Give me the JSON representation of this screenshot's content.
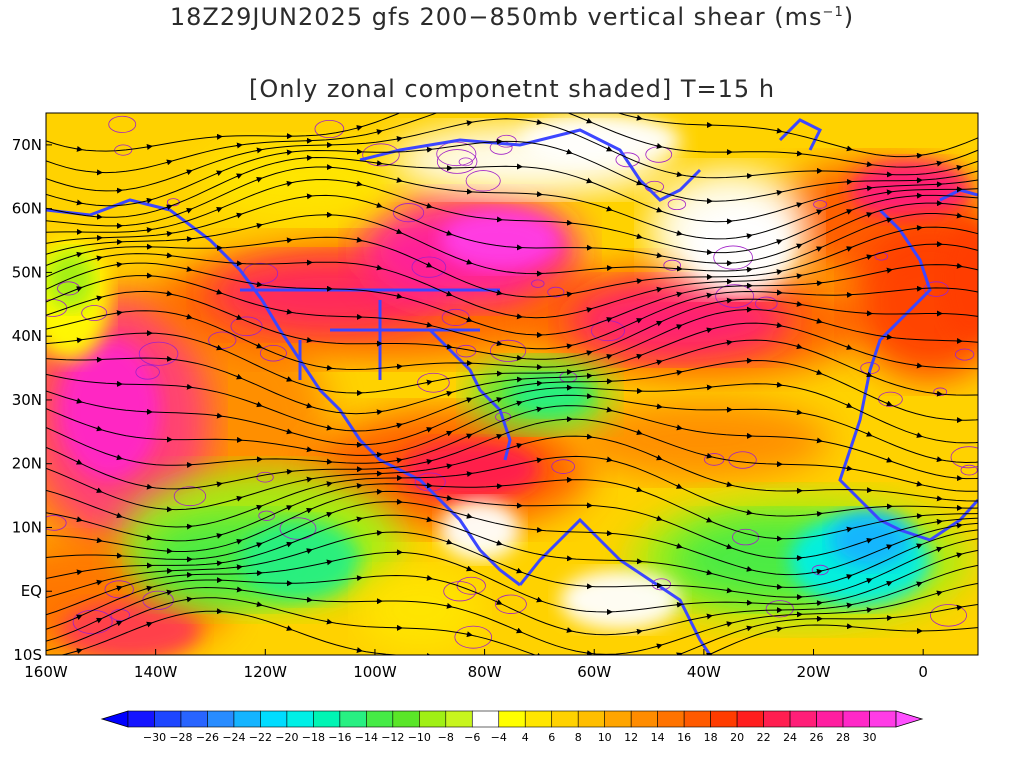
{
  "title": {
    "line1_main": "18Z29JUN2025 gfs 200−850mb vertical shear (ms",
    "line1_sup": "−1",
    "line1_end": ")",
    "line2": "[Only zonal componetnt shaded] T=15 h"
  },
  "map": {
    "lon_range": [
      -160,
      10
    ],
    "lat_range": [
      -10,
      75
    ],
    "projection": "equirectangular"
  },
  "axes": {
    "lat_labels": [
      {
        "text": "70N",
        "lat": 70
      },
      {
        "text": "60N",
        "lat": 60
      },
      {
        "text": "50N",
        "lat": 50
      },
      {
        "text": "40N",
        "lat": 40
      },
      {
        "text": "30N",
        "lat": 30
      },
      {
        "text": "20N",
        "lat": 20
      },
      {
        "text": "10N",
        "lat": 10
      },
      {
        "text": "EQ",
        "lat": 0
      },
      {
        "text": "10S",
        "lat": -10
      }
    ],
    "lon_labels": [
      {
        "text": "160W",
        "lon": -160
      },
      {
        "text": "140W",
        "lon": -140
      },
      {
        "text": "120W",
        "lon": -120
      },
      {
        "text": "100W",
        "lon": -100
      },
      {
        "text": "80W",
        "lon": -80
      },
      {
        "text": "60W",
        "lon": -60
      },
      {
        "text": "40W",
        "lon": -40
      },
      {
        "text": "20W",
        "lon": -20
      },
      {
        "text": "0",
        "lon": 0
      }
    ]
  },
  "colorbar": {
    "labels": [
      "−30",
      "−28",
      "−26",
      "−24",
      "−22",
      "−20",
      "−18",
      "−16",
      "−14",
      "−12",
      "−10",
      "−8",
      "−6",
      "−4",
      "4",
      "6",
      "8",
      "10",
      "12",
      "14",
      "16",
      "18",
      "20",
      "22",
      "24",
      "26",
      "28",
      "30"
    ],
    "colors": [
      "#1414ff",
      "#1e46ff",
      "#2864ff",
      "#288cff",
      "#14b4ff",
      "#00dcff",
      "#00f0e6",
      "#00f5b4",
      "#28f082",
      "#46eb46",
      "#5ae628",
      "#a0f014",
      "#c8f51e",
      "#ffffff",
      "#ffff00",
      "#ffe600",
      "#ffd200",
      "#ffbe00",
      "#ffa500",
      "#ff8c00",
      "#ff7300",
      "#ff5a00",
      "#ff3c00",
      "#ff1e1e",
      "#ff1e50",
      "#ff1e78",
      "#ff1ea0",
      "#ff28c8",
      "#ff3ce6"
    ],
    "left_arrow_color": "#0000ff",
    "right_arrow_color": "#ff50ff"
  },
  "colors": {
    "coastline": "#3c46ff",
    "contour": "#a020c8",
    "streamline": "#000000"
  }
}
